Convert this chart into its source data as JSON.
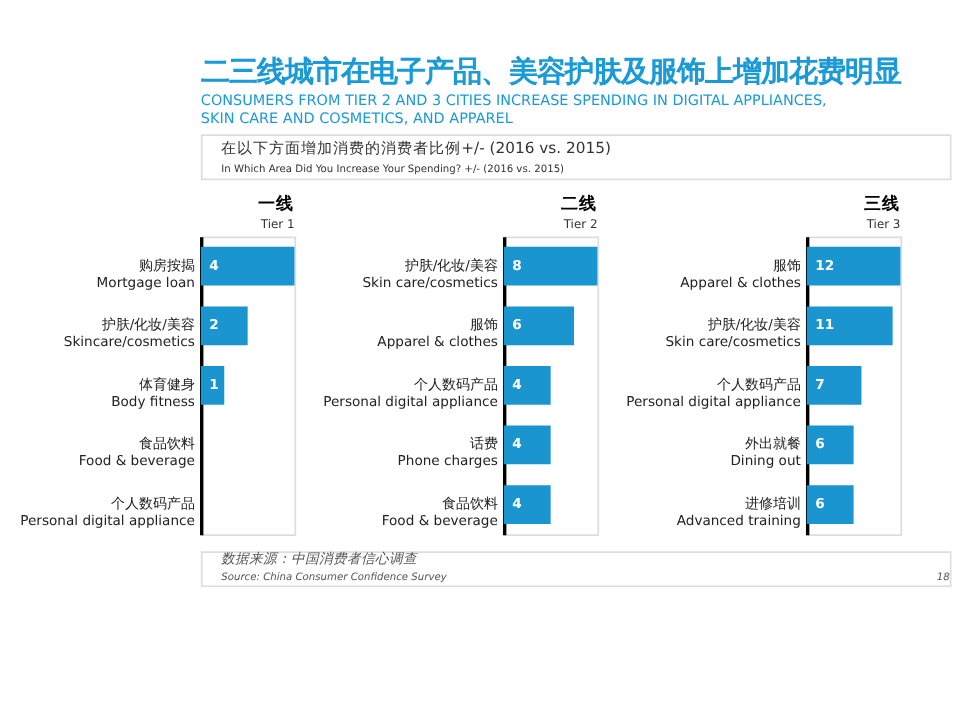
{
  "chart_data": [
    {
      "type": "other",
      "title": "二三线城市在电子产品、美容护肤及服饰上增加花费明显",
      "subtitle": "CONSUMERS FROM TIER 2 AND 3 CITIES INCREASE SPENDING IN DIGITAL APPLIANCES, SKIN CARE AND COSMETICS, AND APPAREL",
      "annotations": [
        "在以下方面增加消费的消费者比例+/- (2016 vs. 2015)",
        "In Which Area Did You Increase Your Spending? +/- (2016 vs. 2015)",
        "数据来源：中国消费者信心调查",
        "Source: China Consumer Confidence Survey",
        "18"
      ]
    },
    {
      "type": "bar",
      "orientation": "horizontal",
      "title": "一线",
      "subtitle": "Tier 1",
      "categories": [
        "购房按揭\nMortgage loan",
        "护肤/化妆/美容\nSkincare/cosmetics",
        "体育健身\nBody fitness",
        "食品饮料\nFood & beverage",
        "个人数码产品\nPersonal digital appliance"
      ],
      "values": [
        4,
        2,
        1,
        null,
        null
      ],
      "color": "#1b95cf",
      "data_labels": true,
      "grid": false
    },
    {
      "type": "bar",
      "orientation": "horizontal",
      "title": "二线",
      "subtitle": "Tier 2",
      "categories": [
        "护肤/化妆/美容\nSkin care/cosmetics",
        "服饰\nApparel & clothes",
        "个人数码产品\nPersonal digital appliance",
        "话费\nPhone charges",
        "食品饮料\nFood & beverage"
      ],
      "values": [
        8,
        6,
        4,
        4,
        4
      ],
      "color": "#1b95cf",
      "data_labels": true,
      "grid": false
    },
    {
      "type": "bar",
      "orientation": "horizontal",
      "title": "三线",
      "subtitle": "Tier 3",
      "categories": [
        "服饰\nApparel & clothes",
        "护肤/化妆/美容\nSkin care/cosmetics",
        "个人数码产品\nPersonal digital appliance",
        "外出就餐\nDining out",
        "进修培训\nAdvanced training"
      ],
      "values": [
        12,
        11,
        7,
        6,
        6
      ],
      "color": "#1b95cf",
      "data_labels": true,
      "grid": false
    }
  ]
}
